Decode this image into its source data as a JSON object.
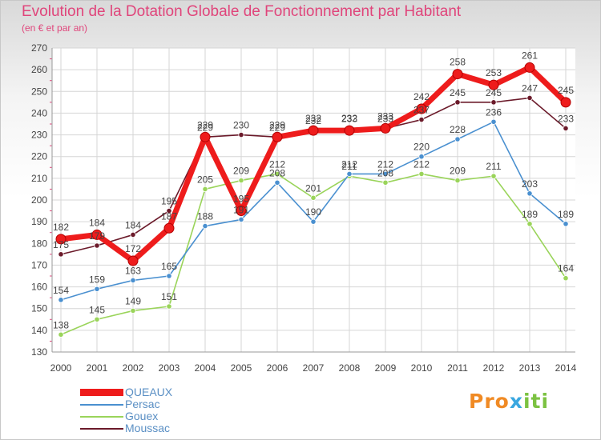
{
  "title": "Evolution de la Dotation Globale de Fonctionnement par Habitant",
  "subtitle": "(en € et par an)",
  "brand": {
    "part1": "Pro",
    "part2": "x",
    "part3": "iti"
  },
  "chart_data": {
    "type": "line",
    "title": "Evolution de la Dotation Globale de Fonctionnement par Habitant",
    "subtitle": "(en € et par an)",
    "xlabel": "",
    "ylabel": "",
    "ylim": [
      130,
      270
    ],
    "ytick_step": 10,
    "grid": true,
    "legend_position": "bottom-left",
    "categories": [
      "2000",
      "2001",
      "2002",
      "2003",
      "2004",
      "2005",
      "2006",
      "2007",
      "2008",
      "2009",
      "2010",
      "2011",
      "2012",
      "2013",
      "2014"
    ],
    "series": [
      {
        "name": "Moussac",
        "color": "#6b1a2a",
        "values": [
          175,
          179,
          184,
          195,
          229,
          230,
          229,
          232,
          233,
          233,
          237,
          245,
          245,
          247,
          233
        ]
      },
      {
        "name": "Gouex",
        "color": "#9ad45a",
        "values": [
          138,
          145,
          149,
          151,
          205,
          209,
          212,
          201,
          211,
          208,
          212,
          209,
          211,
          189,
          164
        ]
      },
      {
        "name": "Persac",
        "color": "#4a90d0",
        "values": [
          154,
          159,
          163,
          165,
          188,
          191,
          208,
          190,
          212,
          212,
          220,
          228,
          236,
          203,
          189
        ]
      },
      {
        "name": "QUEAUX",
        "color": "#ee1c1c",
        "values": [
          182,
          184,
          172,
          187,
          229,
          195,
          229,
          232,
          232,
          233,
          242,
          258,
          253,
          261,
          245
        ]
      }
    ]
  }
}
